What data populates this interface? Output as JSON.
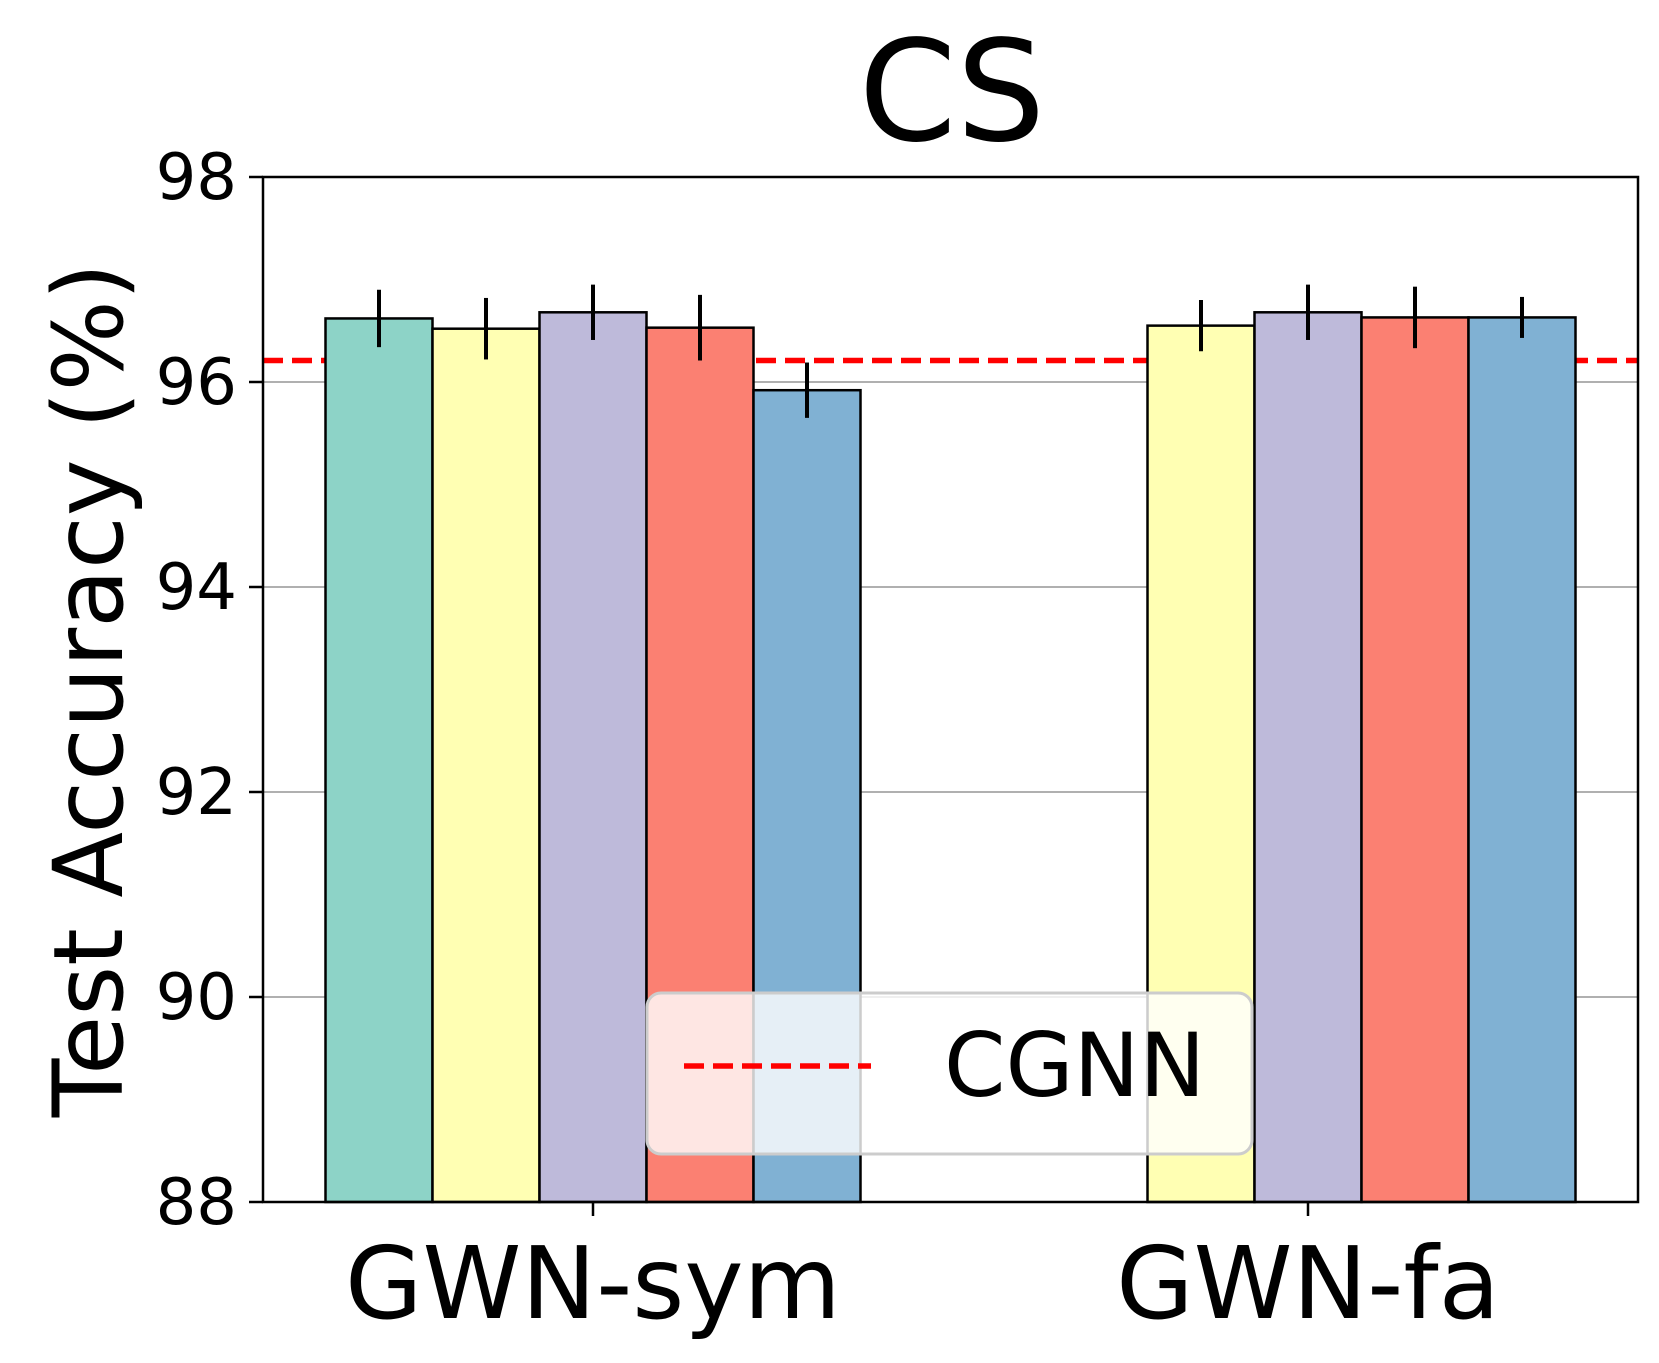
{
  "chart_data": {
    "type": "bar",
    "title": "CS",
    "xlabel": "",
    "ylabel": "Test Accuracy (%)",
    "ylim": [
      88,
      98
    ],
    "yticks": [
      88,
      90,
      92,
      94,
      96,
      98
    ],
    "grid": "y",
    "categories": [
      "GWN-sym",
      "GWN-fa"
    ],
    "series": [
      {
        "name": "",
        "color": "#8dd3c7",
        "values": [
          96.62,
          null
        ],
        "errors": [
          0.28,
          null
        ]
      },
      {
        "name": "",
        "color": "#ffffb3",
        "values": [
          96.52,
          96.55
        ],
        "errors": [
          0.3,
          0.25
        ]
      },
      {
        "name": "",
        "color": "#bebada",
        "values": [
          96.68,
          96.68
        ],
        "errors": [
          0.27,
          0.27
        ]
      },
      {
        "name": "",
        "color": "#fb8072",
        "values": [
          96.53,
          96.63
        ],
        "errors": [
          0.32,
          0.3
        ]
      },
      {
        "name": "",
        "color": "#80b1d3",
        "values": [
          95.92,
          96.63
        ],
        "errors": [
          0.27,
          0.2
        ]
      }
    ],
    "reference_line": {
      "label": "CGNN",
      "value": 96.21,
      "color": "#ff0000",
      "style": "dashed"
    },
    "legend": {
      "position": "lower-center",
      "entries": [
        "CGNN"
      ]
    }
  }
}
